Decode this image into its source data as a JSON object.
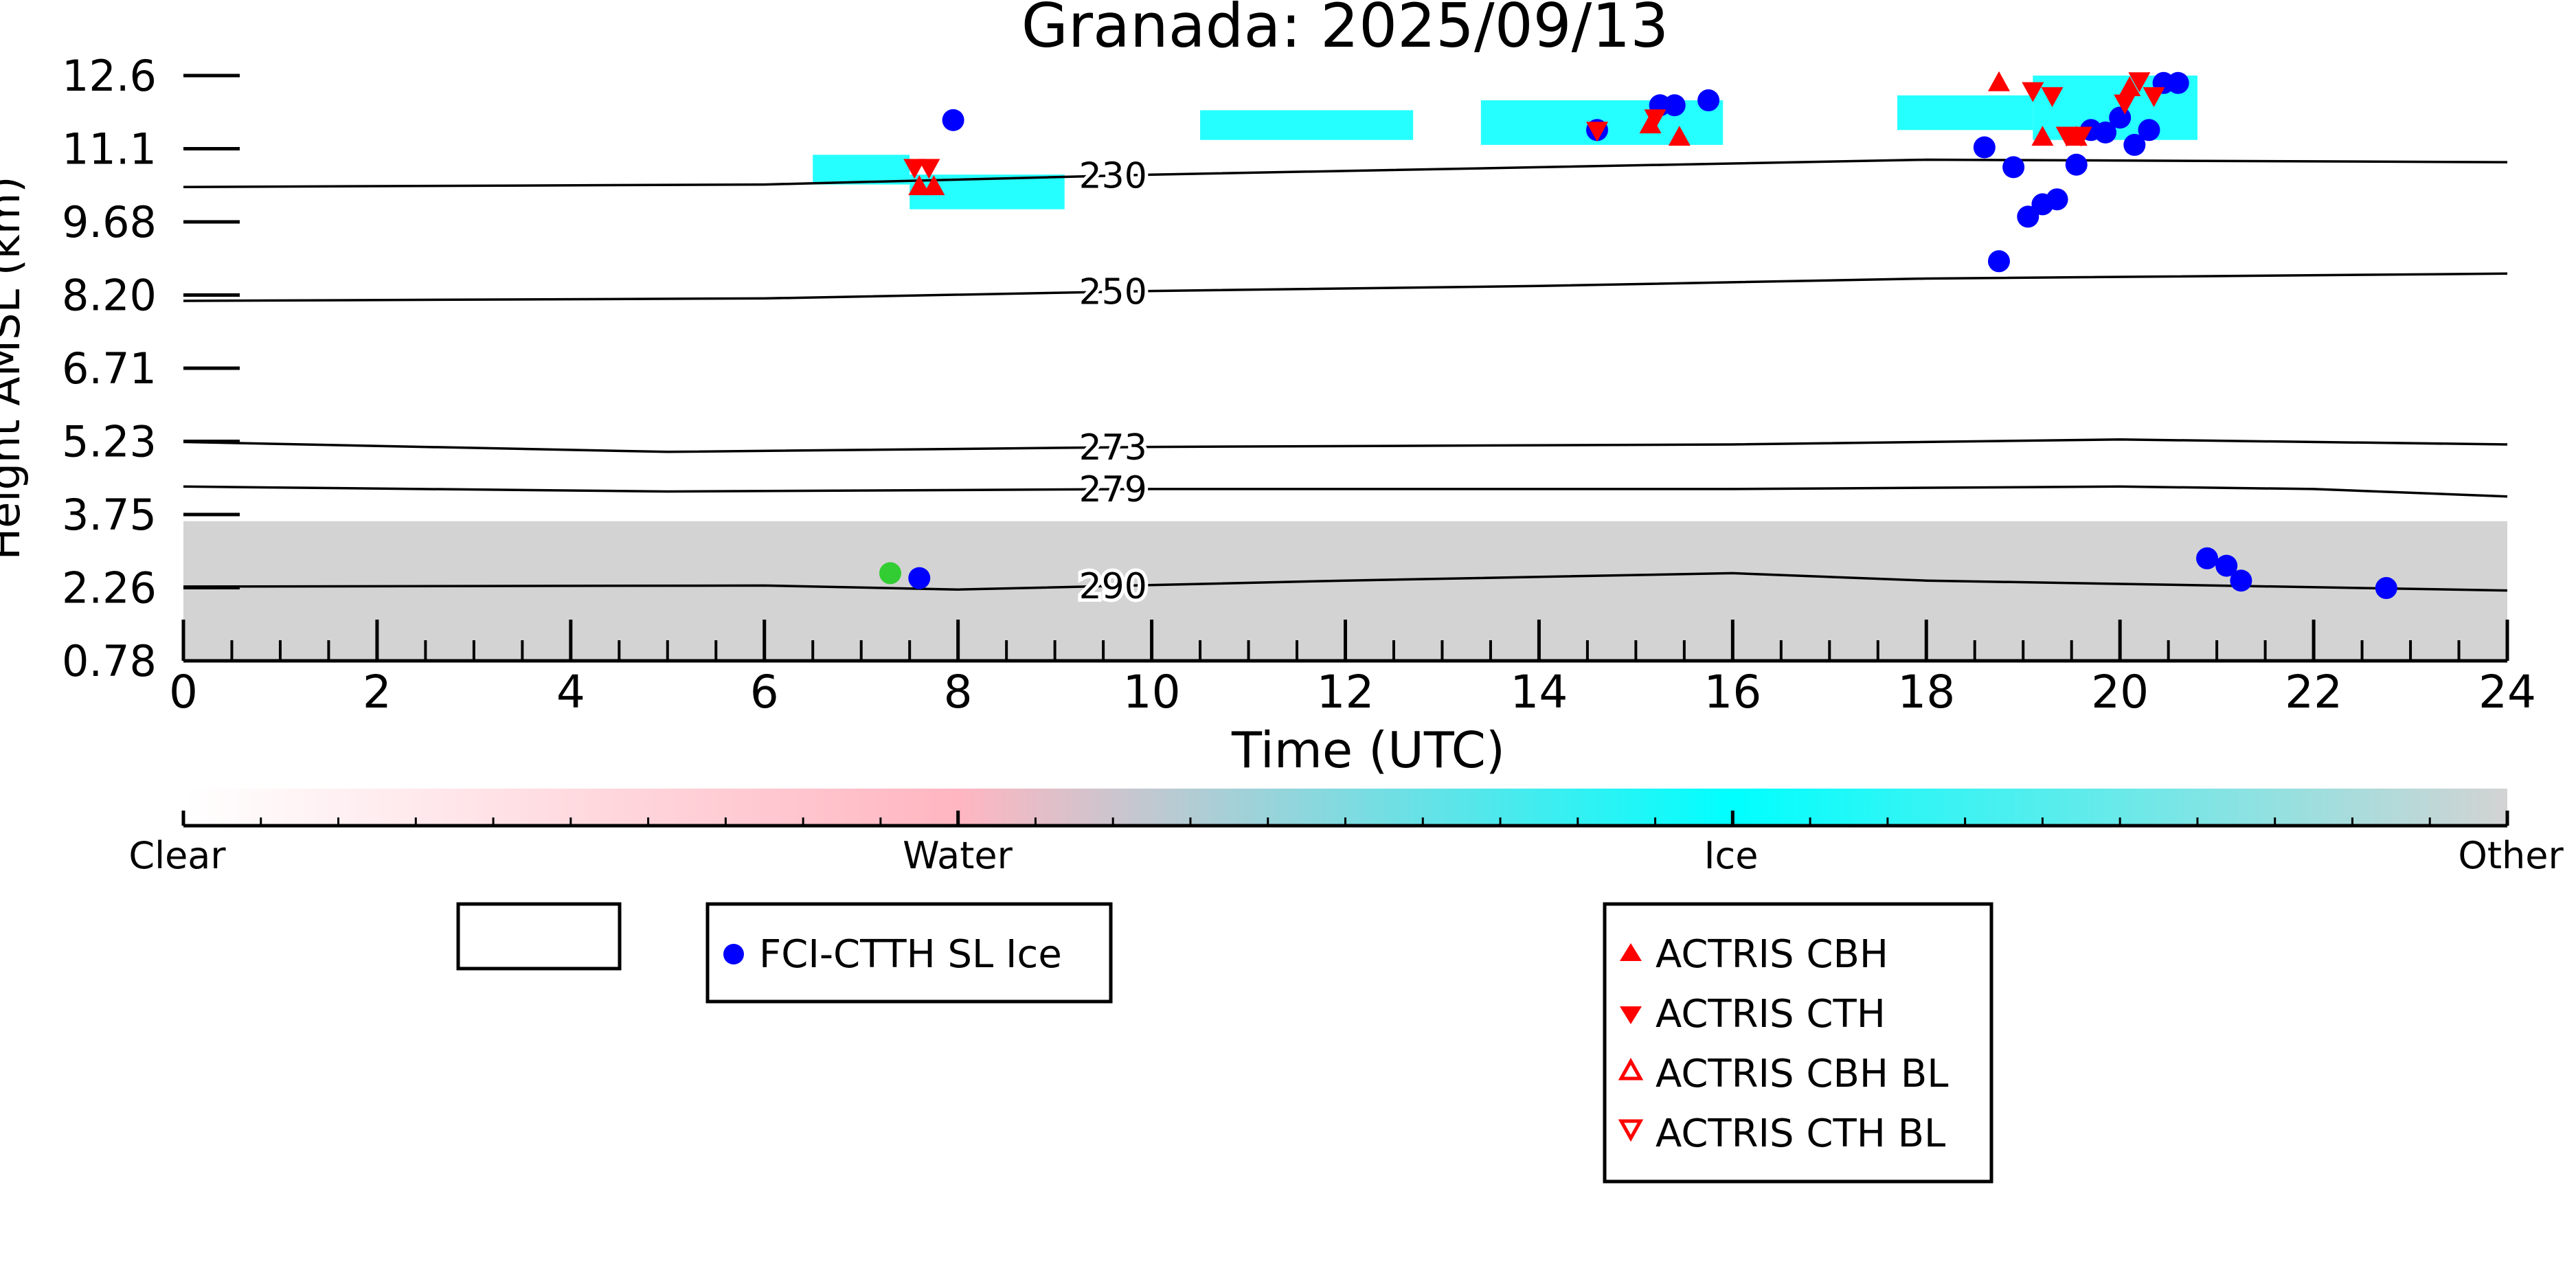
{
  "chart_data": {
    "type": "scatter",
    "title": "Granada: 2025/09/13",
    "xlabel": "Time (UTC)",
    "ylabel": "Height AMSL (km)",
    "xlim": [
      0,
      24
    ],
    "ylim": [
      0.78,
      12.6
    ],
    "x_ticks": [
      "0",
      "2",
      "4",
      "6",
      "8",
      "10",
      "12",
      "14",
      "16",
      "18",
      "20",
      "22",
      "24"
    ],
    "y_ticks": [
      "12.6",
      "11.1",
      "9.68",
      "8.20",
      "6.71",
      "5.23",
      "3.75",
      "2.26",
      "0.78"
    ],
    "classification_colorbar": {
      "labels": [
        "Clear",
        "Water",
        "Ice",
        "Other"
      ],
      "colors": [
        "#ffffff",
        "#ffb6c1",
        "#00ffff",
        "#d3d3d3"
      ]
    },
    "background_layers": [
      {
        "name": "other",
        "color": "#d3d3d3",
        "x_range": [
          0,
          24
        ],
        "y_range": [
          0.78,
          3.6
        ]
      },
      {
        "name": "ice",
        "color": "#00ffff",
        "segments": [
          {
            "x": [
              6.5,
              7.5
            ],
            "y": [
              10.4,
              11.0
            ]
          },
          {
            "x": [
              7.5,
              9.1
            ],
            "y": [
              9.9,
              10.6
            ]
          },
          {
            "x": [
              10.5,
              12.7
            ],
            "y": [
              11.3,
              11.9
            ]
          },
          {
            "x": [
              13.4,
              15.9
            ],
            "y": [
              11.2,
              12.1
            ]
          },
          {
            "x": [
              17.7,
              19.1
            ],
            "y": [
              11.5,
              12.2
            ]
          },
          {
            "x": [
              19.1,
              20.8
            ],
            "y": [
              11.3,
              12.6
            ]
          }
        ]
      }
    ],
    "temperature_contours": [
      {
        "label": "230",
        "label_x": 9.6,
        "points": [
          [
            0,
            10.35
          ],
          [
            6,
            10.4
          ],
          [
            10,
            10.6
          ],
          [
            14,
            10.75
          ],
          [
            18,
            10.9
          ],
          [
            24,
            10.85
          ]
        ]
      },
      {
        "label": "250",
        "label_x": 9.6,
        "points": [
          [
            0,
            8.05
          ],
          [
            6,
            8.1
          ],
          [
            10,
            8.25
          ],
          [
            14,
            8.35
          ],
          [
            18,
            8.5
          ],
          [
            24,
            8.6
          ]
        ]
      },
      {
        "label": "273",
        "label_x": 9.6,
        "points": [
          [
            0,
            5.2
          ],
          [
            5,
            5.0
          ],
          [
            10,
            5.1
          ],
          [
            16,
            5.15
          ],
          [
            20,
            5.25
          ],
          [
            24,
            5.15
          ]
        ]
      },
      {
        "label": "279",
        "label_x": 9.6,
        "points": [
          [
            0,
            4.3
          ],
          [
            5,
            4.2
          ],
          [
            10,
            4.25
          ],
          [
            16,
            4.25
          ],
          [
            20,
            4.3
          ],
          [
            22,
            4.25
          ],
          [
            24,
            4.1
          ]
        ]
      },
      {
        "label": "290",
        "label_x": 9.6,
        "points": [
          [
            0,
            2.28
          ],
          [
            6,
            2.3
          ],
          [
            8,
            2.22
          ],
          [
            12,
            2.4
          ],
          [
            16,
            2.55
          ],
          [
            18,
            2.4
          ],
          [
            24,
            2.2
          ]
        ]
      }
    ],
    "series": [
      {
        "name": "FCI-CTTH SL Ice",
        "marker": "circle",
        "color": "#0000ff",
        "x": [
          7.6,
          7.95,
          14.6,
          15.25,
          15.4,
          15.75,
          18.6,
          18.75,
          18.9,
          19.05,
          19.2,
          19.35,
          19.55,
          19.7,
          19.85,
          20.0,
          20.15,
          20.3,
          20.45,
          20.6,
          20.9,
          21.1,
          21.25,
          22.75
        ],
        "y": [
          2.45,
          11.7,
          11.5,
          12.0,
          12.0,
          12.1,
          11.15,
          8.85,
          10.75,
          9.75,
          10.0,
          10.1,
          10.8,
          11.5,
          11.45,
          11.75,
          11.2,
          11.5,
          12.45,
          12.45,
          2.85,
          2.7,
          2.4,
          2.25
        ]
      },
      {
        "name": "",
        "marker": "circle",
        "color": "#32cd32",
        "x": [
          7.3
        ],
        "y": [
          2.55
        ]
      },
      {
        "name": "ACTRIS CBH",
        "marker": "triangle-up",
        "color": "#ff0000",
        "x": [
          7.6,
          7.75,
          15.15,
          15.45,
          18.75,
          19.2,
          19.55,
          20.1
        ],
        "y": [
          10.35,
          10.35,
          11.6,
          11.35,
          12.45,
          11.35,
          11.35,
          12.35
        ]
      },
      {
        "name": "ACTRIS CTH",
        "marker": "triangle-down",
        "color": "#ff0000",
        "x": [
          7.55,
          7.7,
          14.6,
          15.2,
          19.1,
          19.3,
          19.45,
          19.6,
          20.05,
          20.2,
          20.35
        ],
        "y": [
          10.75,
          10.75,
          11.5,
          11.75,
          12.3,
          12.2,
          11.4,
          11.4,
          12.05,
          12.5,
          12.2
        ]
      },
      {
        "name": "ACTRIS CBH BL",
        "marker": "triangle-up-open",
        "color": "#ff0000",
        "x": [],
        "y": []
      },
      {
        "name": "ACTRIS CTH BL",
        "marker": "triangle-down-open",
        "color": "#ff0000",
        "x": [],
        "y": []
      }
    ],
    "legend_empty_box": true,
    "grid": false
  }
}
